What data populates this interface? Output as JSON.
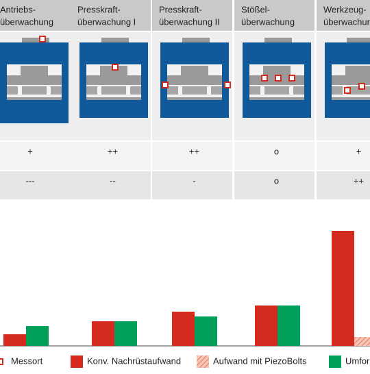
{
  "table": {
    "headers": [
      [
        "Antriebs-",
        "überwachung"
      ],
      [
        "Presskraft-",
        "überwachung I"
      ],
      [
        "Presskraft-",
        "überwachung II"
      ],
      [
        "Stößel-",
        "überwachung"
      ],
      [
        "Werkzeug-",
        "überwachung"
      ]
    ],
    "rows": [
      [
        "+",
        "++",
        "++",
        "o",
        "+"
      ],
      [
        "---",
        "--",
        "-",
        "o",
        "++"
      ]
    ]
  },
  "chart_data": {
    "type": "bar",
    "categories": [
      null,
      null,
      null,
      null,
      null
    ],
    "ylim": [
      0,
      200
    ],
    "marker_legend": "Messort",
    "series": [
      {
        "name": "Konv. Nachrüstaufwand",
        "color": "#d52b1e",
        "values": [
          17,
          36,
          50,
          59,
          168
        ]
      },
      {
        "name": "Aufwand mit PiezoBolts",
        "color": "#f4a48e",
        "hatched": true,
        "values": [
          null,
          null,
          null,
          null,
          13
        ]
      },
      {
        "name": "Umfor",
        "color": "#00a05a",
        "values": [
          29,
          36,
          43,
          59,
          null
        ]
      }
    ]
  }
}
